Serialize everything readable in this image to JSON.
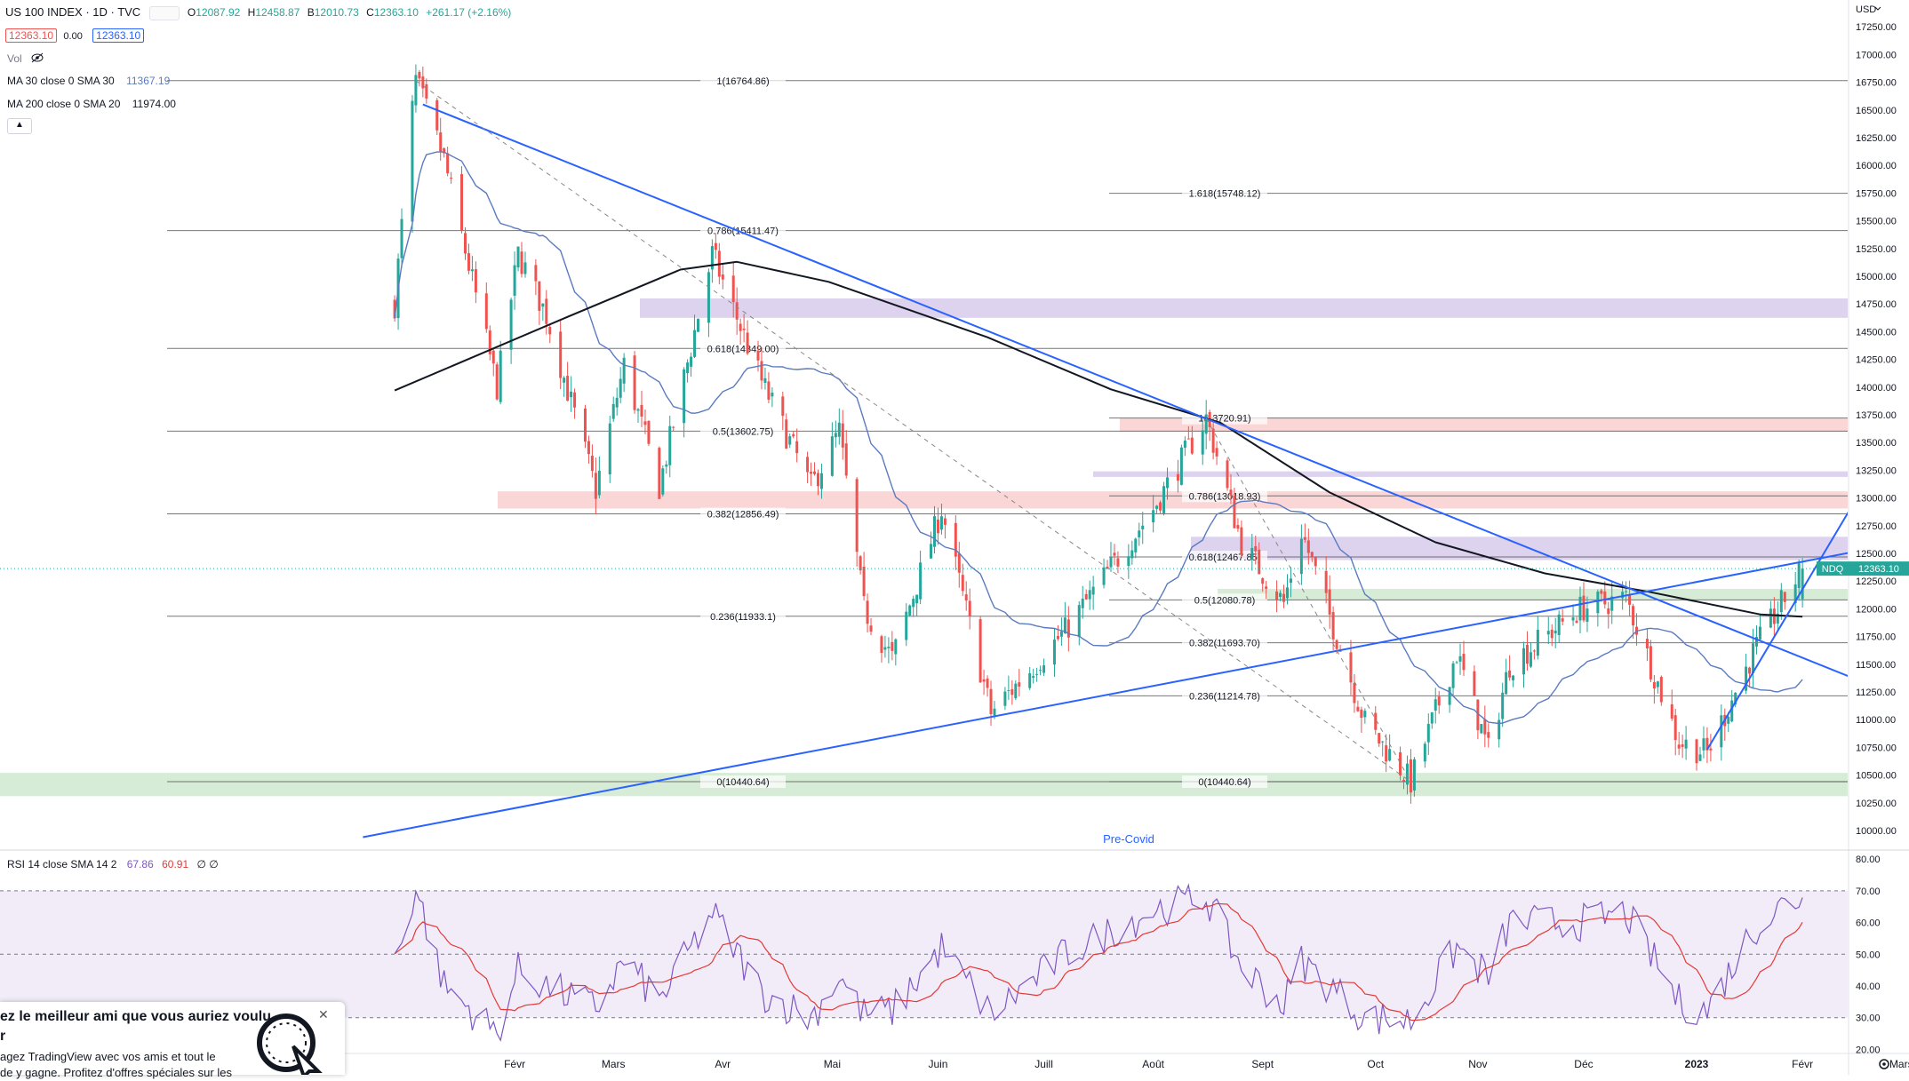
{
  "header": {
    "symbol": "US 100 INDEX · 1D · TVC",
    "o_label": "O",
    "o_value": "12087.92",
    "h_label": "H",
    "h_value": "12458.87",
    "b_label": "B",
    "b_value": "12010.73",
    "c_label": "C",
    "c_value": "12363.10",
    "change": "+261.17 (+2.16%)",
    "bid": "12363.10",
    "spread": "0.00",
    "ask": "12363.10",
    "currency": "USD"
  },
  "indicators": {
    "vol_label": "Vol",
    "ma30_label": "MA 30 close 0 SMA 30",
    "ma30_value": "11367.19",
    "ma200_label": "MA 200 close 0 SMA 20",
    "ma200_value": "11974.00",
    "rsi_label": "RSI 14 close SMA 14 2",
    "rsi_value1": "67.86",
    "rsi_value2": "60.91",
    "rsi_value3": "∅ ∅"
  },
  "price_tag": {
    "symbol": "NDQ",
    "price": "12363.10"
  },
  "fib_labels": [
    {
      "text": "1(16764.86)",
      "price": 16764.86
    },
    {
      "text": "0.786(15411.47)",
      "price": 15411.47
    },
    {
      "text": "0.618(14349.00)",
      "price": 14349.0
    },
    {
      "text": "0.5(13602.75)",
      "price": 13602.75
    },
    {
      "text": "0.382(12856.49)",
      "price": 12856.49
    },
    {
      "text": "0.236(11933.1)",
      "price": 11933.1
    },
    {
      "text": "0(10440.64)",
      "price": 10440.64
    },
    {
      "text": "1.618(15748.12)",
      "price": 15748.12
    },
    {
      "text": "1(13720.91)",
      "price": 13720.91
    },
    {
      "text": "0.786(13018.93)",
      "price": 13018.93
    },
    {
      "text": "0.618(12467.85)",
      "price": 12467.85
    },
    {
      "text": "0.5(12080.78)",
      "price": 12080.78
    },
    {
      "text": "0.382(11693.70)",
      "price": 11693.7
    },
    {
      "text": "0.236(11214.78)",
      "price": 11214.78
    },
    {
      "text": "0(10440.64)",
      "price": 10440.64
    }
  ],
  "annotation": "Pre-Covid",
  "popup": {
    "title": "ez le meilleur ami que vous auriez voulu",
    "title2": "r",
    "body1": "agez TradingView avec vos amis et tout le",
    "body2": "de y gagne. Profitez d'offres spéciales sur les"
  },
  "colors": {
    "up": "#26a69a",
    "down": "#ef5350",
    "ma30": "#5b7bc0",
    "ma200": "#131722",
    "trend": "#2962ff",
    "rsi": "#7e57c2",
    "rsi_ma": "#e53935"
  },
  "chart_data": {
    "type": "candlestick",
    "title": "US 100 INDEX · 1D · TVC",
    "y_axis_ticks": [
      17250,
      17000,
      16750,
      16500,
      16250,
      16000,
      15750,
      15500,
      15250,
      15000,
      14750,
      14500,
      14250,
      14000,
      13750,
      13500,
      13250,
      13000,
      12750,
      12500,
      12250,
      12000,
      11750,
      11500,
      11250,
      11000,
      10750,
      10500,
      10250,
      10000
    ],
    "y_axis_tick_labels": [
      "17250.00",
      "17000.00",
      "16750.00",
      "16500.00",
      "16250.00",
      "16000.00",
      "15750.00",
      "15500.00",
      "15250.00",
      "15000.00",
      "14750.00",
      "14500.00",
      "14250.00",
      "14000.00",
      "13750.00",
      "13500.00",
      "13250.00",
      "13000.00",
      "12750.00",
      "12500.00",
      "12250.00",
      "12000.00",
      "11750.00",
      "11500.00",
      "11250.00",
      "11000.00",
      "10750.00",
      "10500.00",
      "10250.00",
      "10000.00"
    ],
    "ylim": [
      9880,
      17380
    ],
    "x_axis_labels": [
      "Févr",
      "Mars",
      "Avr",
      "Mai",
      "Juin",
      "Juill",
      "Août",
      "Sept",
      "Oct",
      "Nov",
      "Déc",
      "2023",
      "Févr",
      "Mars"
    ],
    "price_keypoints": [
      [
        "2021-12-29",
        14750
      ],
      [
        "2022-01-03",
        16500
      ],
      [
        "2022-01-04",
        16764
      ],
      [
        "2022-01-12",
        16050
      ],
      [
        "2022-01-27",
        14000
      ],
      [
        "2022-02-02",
        15200
      ],
      [
        "2022-02-10",
        14650
      ],
      [
        "2022-02-24",
        13070
      ],
      [
        "2022-03-04",
        14200
      ],
      [
        "2022-03-14",
        13100
      ],
      [
        "2022-03-29",
        15200
      ],
      [
        "2022-04-12",
        14050
      ],
      [
        "2022-04-26",
        13100
      ],
      [
        "2022-05-04",
        13600
      ],
      [
        "2022-05-11",
        12000
      ],
      [
        "2022-05-19",
        11550
      ],
      [
        "2022-06-02",
        12900
      ],
      [
        "2022-06-16",
        11060
      ],
      [
        "2022-07-07",
        11800
      ],
      [
        "2022-08-01",
        12900
      ],
      [
        "2022-08-16",
        13720
      ],
      [
        "2022-08-26",
        12600
      ],
      [
        "2022-09-07",
        12050
      ],
      [
        "2022-09-12",
        12700
      ],
      [
        "2022-09-30",
        10980
      ],
      [
        "2022-10-13",
        10440
      ],
      [
        "2022-10-26",
        11600
      ],
      [
        "2022-11-04",
        10720
      ],
      [
        "2022-11-10",
        11500
      ],
      [
        "2022-11-30",
        12000
      ],
      [
        "2022-12-13",
        12100
      ],
      [
        "2022-12-28",
        10800
      ],
      [
        "2023-01-05",
        10700
      ],
      [
        "2023-01-18",
        11600
      ],
      [
        "2023-01-27",
        12100
      ],
      [
        "2023-02-01",
        12363
      ]
    ],
    "rsi_keypoints": [
      [
        "2021-12-29",
        48
      ],
      [
        "2022-01-04",
        71
      ],
      [
        "2022-01-12",
        40
      ],
      [
        "2022-01-27",
        25
      ],
      [
        "2022-02-02",
        45
      ],
      [
        "2022-02-10",
        40
      ],
      [
        "2022-02-24",
        33
      ],
      [
        "2022-03-04",
        48
      ],
      [
        "2022-03-14",
        35
      ],
      [
        "2022-03-29",
        63
      ],
      [
        "2022-04-12",
        38
      ],
      [
        "2022-04-26",
        30
      ],
      [
        "2022-05-04",
        43
      ],
      [
        "2022-05-11",
        31
      ],
      [
        "2022-05-19",
        32
      ],
      [
        "2022-06-02",
        52
      ],
      [
        "2022-06-16",
        31
      ],
      [
        "2022-07-07",
        50
      ],
      [
        "2022-08-01",
        64
      ],
      [
        "2022-08-16",
        68
      ],
      [
        "2022-08-26",
        46
      ],
      [
        "2022-09-07",
        34
      ],
      [
        "2022-09-12",
        48
      ],
      [
        "2022-09-30",
        30
      ],
      [
        "2022-10-13",
        29
      ],
      [
        "2022-10-26",
        52
      ],
      [
        "2022-11-04",
        43
      ],
      [
        "2022-11-10",
        60
      ],
      [
        "2022-11-30",
        60
      ],
      [
        "2022-12-13",
        63
      ],
      [
        "2022-12-28",
        35
      ],
      [
        "2023-01-05",
        32
      ],
      [
        "2023-01-18",
        58
      ],
      [
        "2023-01-27",
        66
      ],
      [
        "2023-02-01",
        68
      ]
    ],
    "rsi_axis_ticks": [
      80,
      70,
      60,
      50,
      40,
      30,
      20
    ],
    "rsi_axis_tick_labels": [
      "80.00",
      "70.00",
      "60.00",
      "50.00",
      "40.00",
      "30.00",
      "20.00"
    ],
    "rsi_ylim": [
      19,
      82
    ],
    "rsi_bands": [
      70,
      50,
      30
    ]
  }
}
